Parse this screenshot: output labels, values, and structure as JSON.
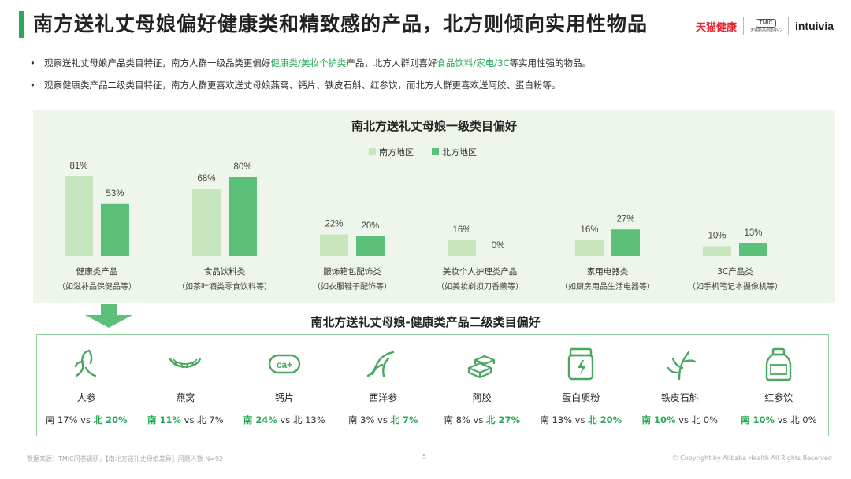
{
  "header": {
    "title": "南方送礼丈母娘偏好健康类和精致感的产品，北方则倾向实用性物品",
    "logos": {
      "tmall": "天猫健康",
      "tmic": "TMIC",
      "tmic_sub": "天猫新品创新中心",
      "intuivia": "intuivia"
    }
  },
  "bullets": [
    {
      "pre": "观察送礼丈母娘产品类目特征，南方人群一级品类更偏好",
      "hl1": "健康类/美妆个护类",
      "mid": "产品，北方人群则喜好",
      "hl2": "食品饮料/家电/3C",
      "post": "等实用性强的物品。"
    },
    {
      "text": "观察健康类产品二级类目特征，南方人群更喜欢送丈母娘燕窝、钙片、铁皮石斛、红参饮，而北方人群更喜欢送阿胶、蛋白粉等。"
    }
  ],
  "colors": {
    "south": "#c8e6bd",
    "north": "#5cc07a",
    "accent": "#2aa85a",
    "panel": "#eef6ec"
  },
  "chart_data": {
    "type": "bar",
    "title": "南北方送礼丈母娘一级类目偏好",
    "categories": [
      "健康类产品",
      "食品饮料类",
      "服饰箱包配饰类",
      "美妆个人护理类产品",
      "家用电器类",
      "3C产品类"
    ],
    "category_notes": [
      "（如滋补品保健品等）",
      "（如茶叶酒类零食饮料等）",
      "（如衣服鞋子配饰等）",
      "（如美妆剃须刀香薰等）",
      "（如厨房用品生活电器等）",
      "（如手机笔记本摄像机等）"
    ],
    "series": [
      {
        "name": "南方地区",
        "values": [
          81,
          68,
          22,
          16,
          16,
          10
        ],
        "labels": [
          "81%",
          "68%",
          "22%",
          "16%",
          "16%",
          "10%"
        ]
      },
      {
        "name": "北方地区",
        "values": [
          53,
          80,
          20,
          0,
          27,
          13
        ],
        "labels": [
          "53%",
          "80%",
          "20%",
          "0%",
          "27%",
          "13%"
        ]
      }
    ],
    "ylim": [
      0,
      100
    ],
    "legend": "top-right",
    "grid": false
  },
  "sub_section": {
    "title": "南北方送礼丈母娘-健康类产品二级类目偏好",
    "items": [
      {
        "icon": "ginseng-icon",
        "name": "人参",
        "south": "南 17%",
        "vs": " vs ",
        "north": "北 20%",
        "winner": "north"
      },
      {
        "icon": "birds-nest-icon",
        "name": "燕窝",
        "south": "南 11%",
        "vs": " vs ",
        "north": "北 7%",
        "winner": "south"
      },
      {
        "icon": "calcium-tablet-icon",
        "name": "钙片",
        "south": "南 24%",
        "vs": " vs ",
        "north": "北 13%",
        "winner": "south"
      },
      {
        "icon": "american-ginseng-icon",
        "name": "西洋参",
        "south": "南 3%",
        "vs": " vs ",
        "north": "北 7%",
        "winner": "north"
      },
      {
        "icon": "gelatin-blocks-icon",
        "name": "阿胶",
        "south": "南 8%",
        "vs": " vs ",
        "north": "北 27%",
        "winner": "north"
      },
      {
        "icon": "protein-powder-icon",
        "name": "蛋白质粉",
        "south": "南 13%",
        "vs": " vs ",
        "north": "北 20%",
        "winner": "north"
      },
      {
        "icon": "dendrobium-icon",
        "name": "铁皮石斛",
        "south": "南 10%",
        "vs": " vs ",
        "north": "北 0%",
        "winner": "south"
      },
      {
        "icon": "red-ginseng-drink-icon",
        "name": "红参饮",
        "south": "南 10%",
        "vs": " vs ",
        "north": "北 0%",
        "winner": "south"
      }
    ]
  },
  "footer": {
    "source": "数据来源：TMIC问卷调研，【南北方送礼丈母娘差异】问题人数 N=92",
    "page": "5",
    "copyright": "© Copyright by Alibaba Health All Rights Reserved"
  }
}
